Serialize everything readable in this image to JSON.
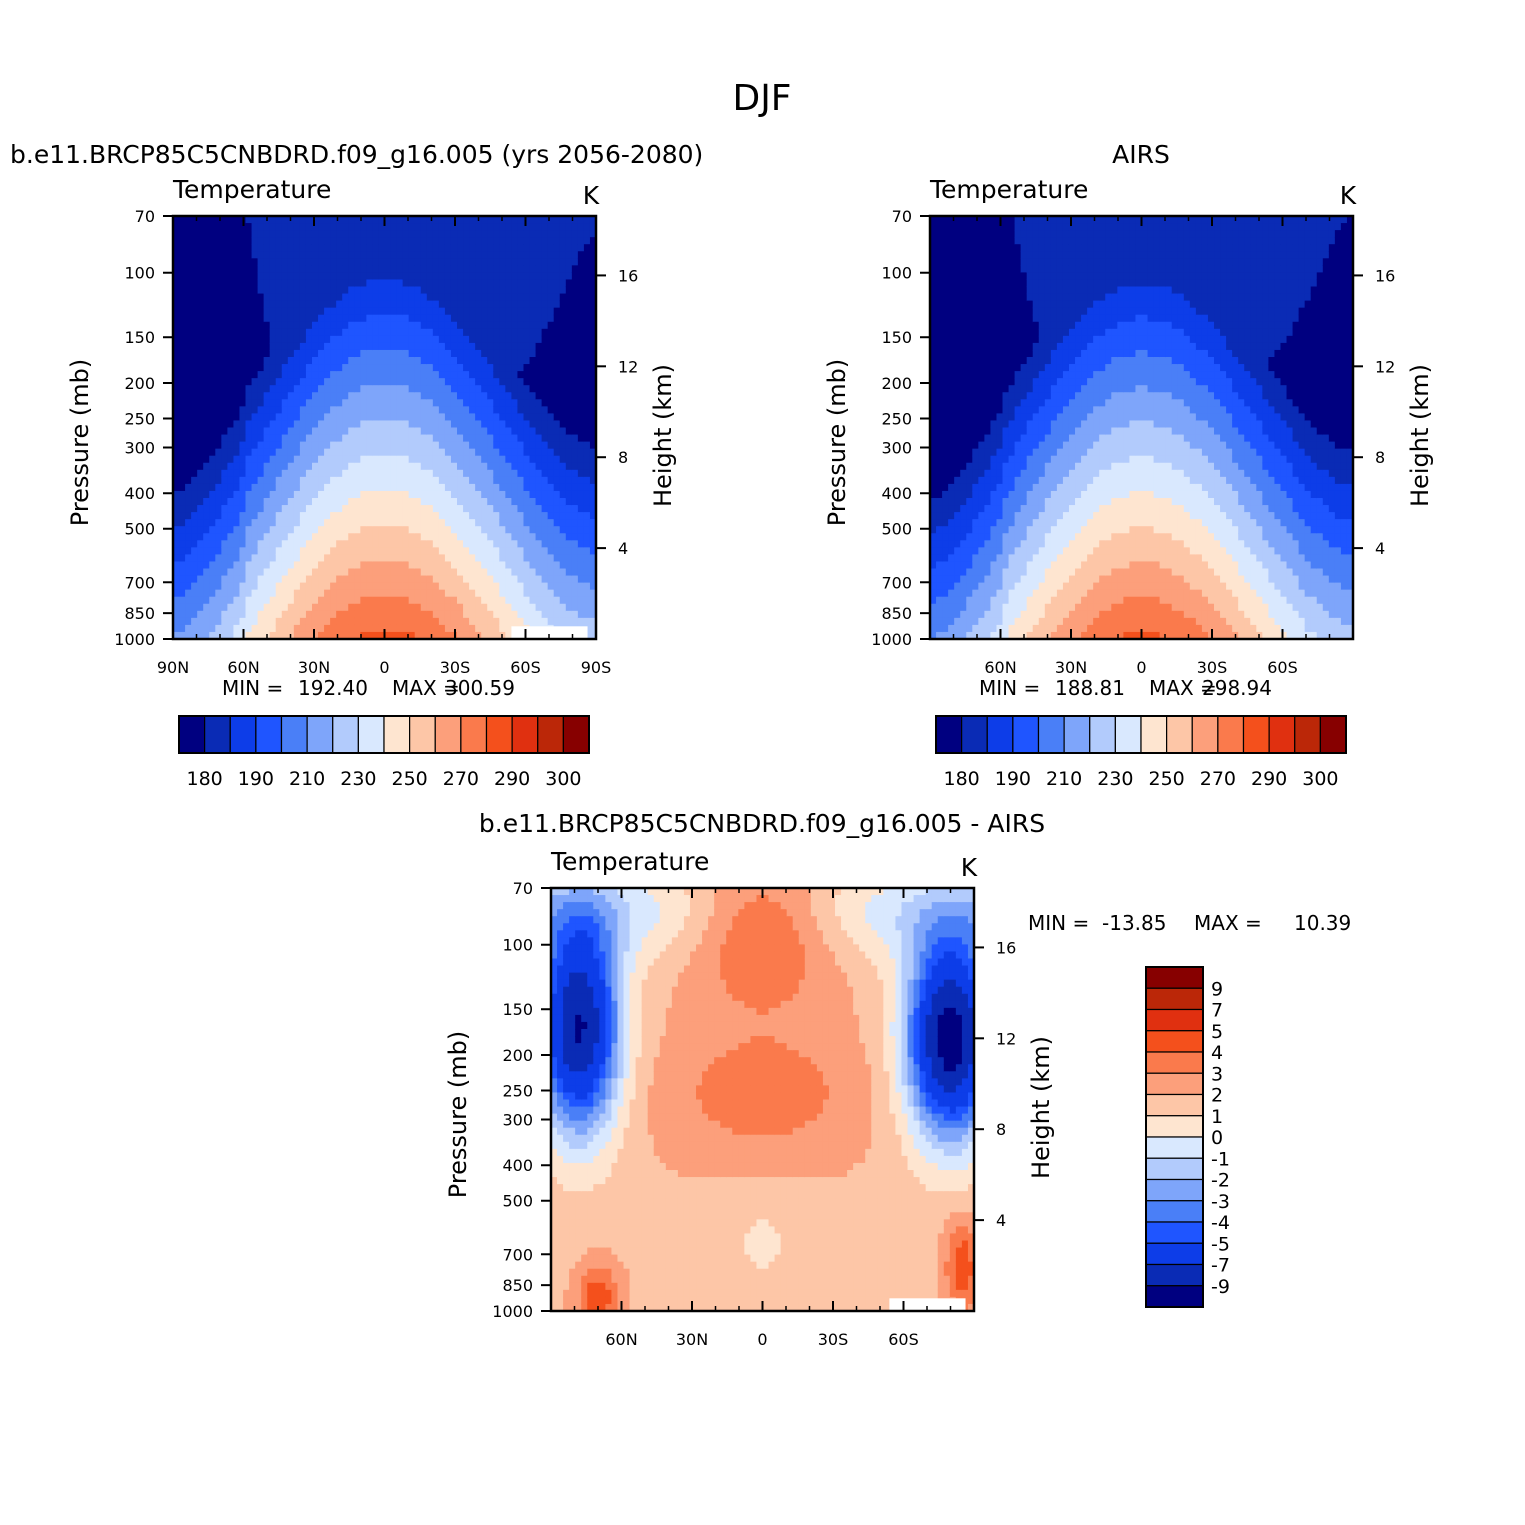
{
  "figure_title": "DJF",
  "chart_data": [
    {
      "type": "heatmap",
      "id": "model",
      "title": "b.e11.BRCP85C5CNBDRD.f09_g16.005 (yrs 2056-2080)",
      "variable": "Temperature",
      "units": "K",
      "ylabel": "Pressure (mb)",
      "y2label": "Height (km)",
      "xticks": [
        "90N",
        "60N",
        "30N",
        "0",
        "30S",
        "60S",
        "90S"
      ],
      "yticks": [
        "70",
        "100",
        "150",
        "200",
        "250",
        "300",
        "400",
        "500",
        "700",
        "850",
        "1000"
      ],
      "y2ticks": [
        "16",
        "12",
        "8",
        "4"
      ],
      "min_label": "MIN =",
      "min_value": "192.40",
      "max_label": "MAX =",
      "max_value": "300.59",
      "colorbar_labels": [
        "180",
        "190",
        "210",
        "230",
        "250",
        "270",
        "290",
        "300"
      ],
      "levels": [
        185,
        195,
        205,
        215,
        225,
        235,
        245,
        255,
        265,
        275,
        285,
        295
      ],
      "colors": [
        "#000080",
        "#0a2bb5",
        "#0d3de8",
        "#1f55ff",
        "#4a7ff7",
        "#7ea5fa",
        "#b2cbfc",
        "#d9e8fe",
        "#fee5d0",
        "#fdc6a7",
        "#fc9f7b",
        "#fa7a4c",
        "#f4501c",
        "#e03010",
        "#bb2708",
        "#870000"
      ]
    },
    {
      "type": "heatmap",
      "id": "airs",
      "title": "AIRS",
      "variable": "Temperature",
      "units": "K",
      "ylabel": "Pressure (mb)",
      "y2label": "Height (km)",
      "xticks": [
        "60N",
        "30N",
        "0",
        "30S",
        "60S"
      ],
      "yticks": [
        "70",
        "100",
        "150",
        "200",
        "250",
        "300",
        "400",
        "500",
        "700",
        "850",
        "1000"
      ],
      "y2ticks": [
        "16",
        "12",
        "8",
        "4"
      ],
      "min_label": "MIN =",
      "min_value": "188.81",
      "max_label": "MAX =",
      "max_value": "298.94",
      "colorbar_labels": [
        "180",
        "190",
        "210",
        "230",
        "250",
        "270",
        "290",
        "300"
      ],
      "levels": [
        185,
        195,
        205,
        215,
        225,
        235,
        245,
        255,
        265,
        275,
        285,
        295
      ],
      "colors": [
        "#000080",
        "#0a2bb5",
        "#0d3de8",
        "#1f55ff",
        "#4a7ff7",
        "#7ea5fa",
        "#b2cbfc",
        "#d9e8fe",
        "#fee5d0",
        "#fdc6a7",
        "#fc9f7b",
        "#fa7a4c",
        "#f4501c",
        "#e03010",
        "#bb2708",
        "#870000"
      ]
    },
    {
      "type": "heatmap",
      "id": "diff",
      "title": "b.e11.BRCP85C5CNBDRD.f09_g16.005 - AIRS",
      "variable": "Temperature",
      "units": "K",
      "ylabel": "Pressure (mb)",
      "y2label": "Height (km)",
      "xticks": [
        "60N",
        "30N",
        "0",
        "30S",
        "60S"
      ],
      "yticks": [
        "70",
        "100",
        "150",
        "200",
        "250",
        "300",
        "400",
        "500",
        "700",
        "850",
        "1000"
      ],
      "y2ticks": [
        "16",
        "12",
        "8",
        "4"
      ],
      "min_label": "MIN =",
      "min_value": "-13.85",
      "max_label": "MAX =",
      "max_value": "10.39",
      "colorbar_labels": [
        "9",
        "7",
        "5",
        "4",
        "3",
        "2",
        "1",
        "0",
        "-1",
        "-2",
        "-3",
        "-4",
        "-5",
        "-7",
        "-9"
      ],
      "levels": [
        -9,
        -7,
        -5,
        -4,
        -3,
        -2,
        -1,
        0,
        1,
        2,
        3,
        4,
        5,
        7,
        9
      ],
      "colors": [
        "#000080",
        "#0a2bb5",
        "#0d3de8",
        "#1f55ff",
        "#4a7ff7",
        "#7ea5fa",
        "#b2cbfc",
        "#d9e8fe",
        "#fee5d0",
        "#fdc6a7",
        "#fc9f7b",
        "#fa7a4c",
        "#f4501c",
        "#e03010",
        "#bb2708",
        "#870000"
      ]
    }
  ]
}
